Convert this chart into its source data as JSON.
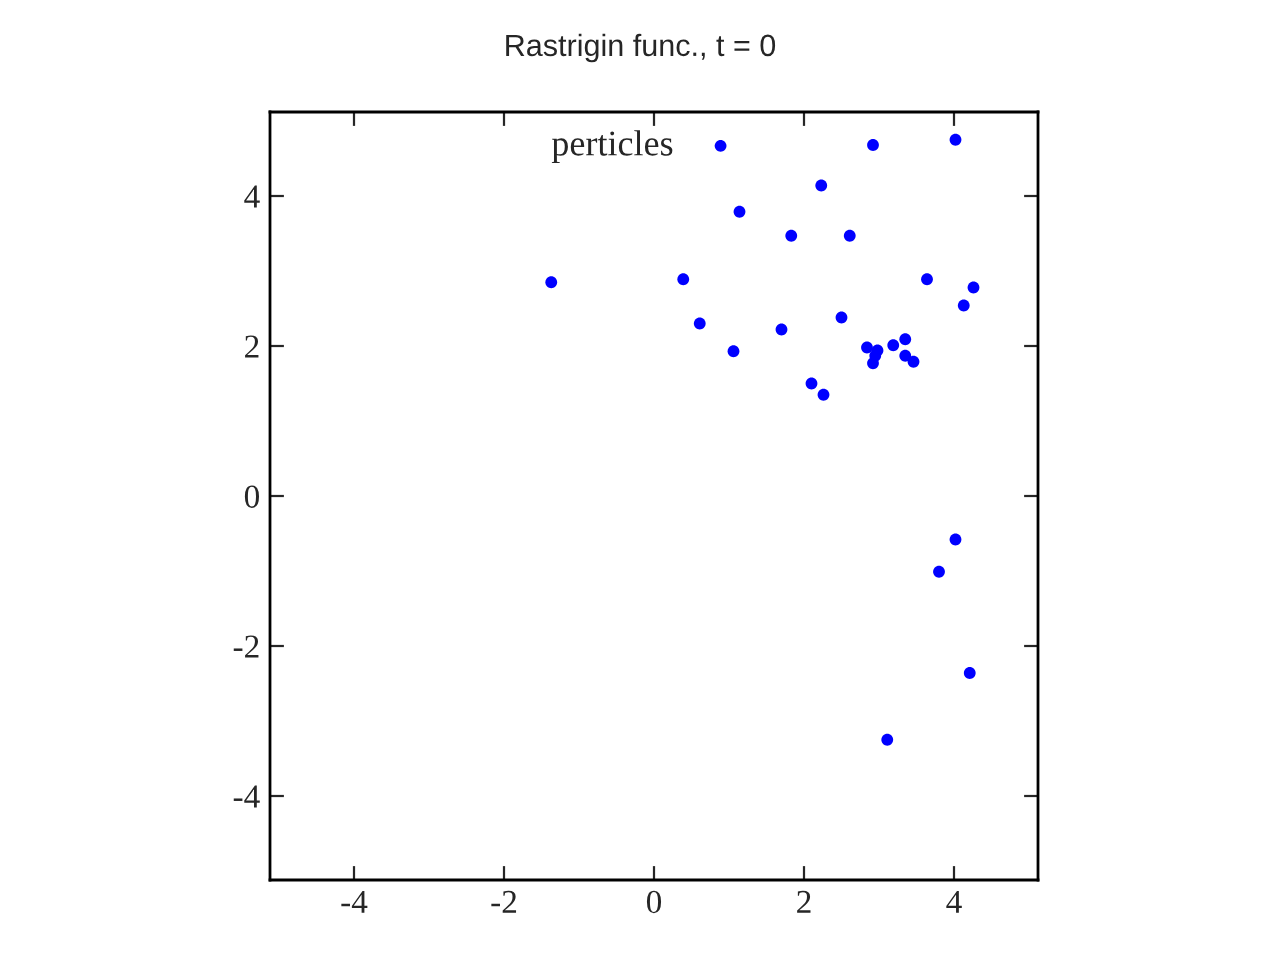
{
  "chart_data": {
    "type": "scatter",
    "title": "Rastrigin func., t = 0",
    "legend": "top",
    "marker": "circle",
    "grid": false,
    "xlim": [
      -5.12,
      5.12
    ],
    "ylim": [
      -5.12,
      5.12
    ],
    "xticks": [
      -4,
      -2,
      0,
      2,
      4
    ],
    "yticks": [
      -4,
      -2,
      0,
      2,
      4
    ],
    "series": [
      {
        "name": "perticles",
        "color": "#0000ff",
        "x": [
          -1.37,
          0.39,
          0.61,
          1.06,
          1.14,
          1.7,
          1.83,
          2.1,
          2.23,
          2.26,
          2.5,
          2.61,
          2.84,
          2.92,
          2.92,
          2.95,
          2.98,
          3.19,
          3.35,
          3.35,
          3.46,
          3.64,
          4.02,
          4.13,
          4.26,
          4.02,
          3.8,
          4.21,
          3.11
        ],
        "values": [
          2.85,
          2.89,
          2.3,
          1.93,
          3.79,
          2.22,
          3.47,
          1.5,
          4.14,
          1.35,
          2.38,
          3.47,
          1.98,
          4.68,
          1.77,
          1.87,
          1.94,
          2.01,
          2.09,
          1.87,
          1.79,
          2.89,
          4.75,
          2.54,
          2.78,
          -0.58,
          -1.01,
          -2.36,
          -3.25
        ]
      }
    ]
  }
}
